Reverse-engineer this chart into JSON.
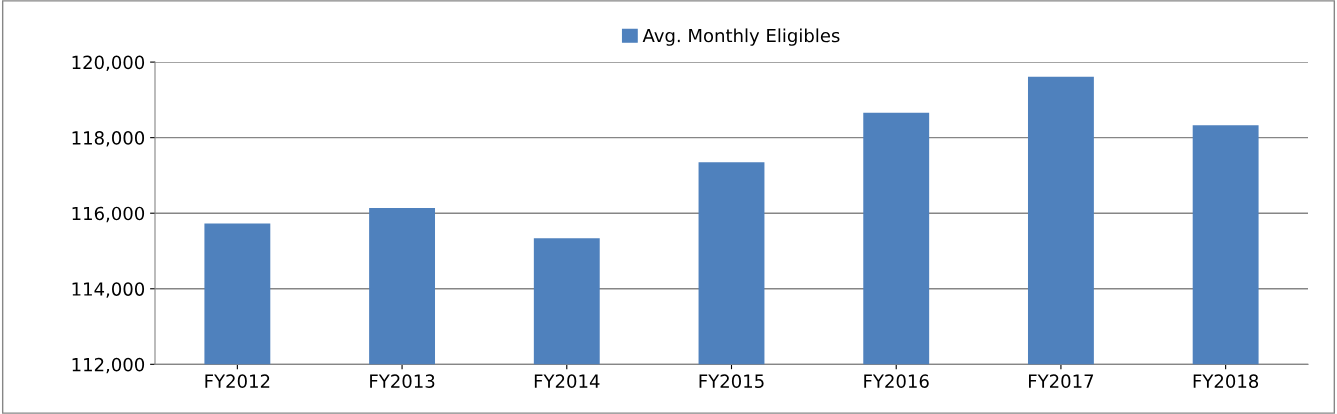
{
  "chart_data": {
    "type": "bar",
    "categories": [
      "FY2012",
      "FY2013",
      "FY2014",
      "FY2015",
      "FY2016",
      "FY2017",
      "FY2018"
    ],
    "series": [
      {
        "name": "Avg. Monthly Eligibles",
        "color": "#4f81bd",
        "values": [
          115730,
          116140,
          115340,
          117350,
          118660,
          119610,
          118330
        ]
      }
    ],
    "ylim": [
      112000,
      120000
    ],
    "yticks": [
      {
        "value": 112000,
        "label": "112,000"
      },
      {
        "value": 114000,
        "label": "114,000"
      },
      {
        "value": 116000,
        "label": "116,000"
      },
      {
        "value": 118000,
        "label": "118,000"
      },
      {
        "value": 120000,
        "label": "120,000"
      }
    ],
    "grid": "y",
    "legend": "top"
  }
}
